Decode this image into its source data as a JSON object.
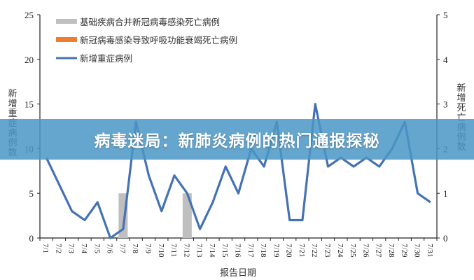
{
  "chart_data": {
    "type": "bar+line",
    "xlabel": "报告日期",
    "ylabel_left": "新增重症病例数",
    "ylabel_right": "新增死亡病例数",
    "ylim_left": [
      0,
      25
    ],
    "ylim_right": [
      0,
      5
    ],
    "yticks_left": [
      0,
      5,
      10,
      15,
      20,
      25
    ],
    "yticks_right": [
      0,
      1,
      2,
      3,
      4,
      5
    ],
    "legend_position": "top-left",
    "grid": false,
    "categories": [
      "7/1",
      "7/2",
      "7/3",
      "7/4",
      "7/5",
      "7/6",
      "7/7",
      "7/8",
      "7/9",
      "7/10",
      "7/11",
      "7/12",
      "7/13",
      "7/14",
      "7/15",
      "7/16",
      "7/17",
      "7/18",
      "7/19",
      "7/20",
      "7/21",
      "7/22",
      "7/23",
      "7/24",
      "7/25",
      "7/26",
      "7/27",
      "7/28",
      "7/29",
      "7/30",
      "7/31"
    ],
    "series": [
      {
        "name": "基础疾病合并新冠病毒感染死亡病例",
        "type": "bar",
        "axis": "right",
        "color": "#bfbfbf",
        "values": [
          0,
          0,
          0,
          0,
          0,
          0,
          1,
          0,
          0,
          0,
          0,
          1,
          0,
          0,
          0,
          0,
          0,
          0,
          0,
          0,
          0,
          0,
          0,
          0,
          0,
          0,
          0,
          0,
          0,
          0,
          0
        ]
      },
      {
        "name": "新冠病毒感染导致呼吸功能衰竭死亡病例",
        "type": "bar",
        "axis": "right",
        "color": "#ed7d31",
        "values": [
          0,
          0,
          0,
          0,
          0,
          0,
          0,
          0,
          0,
          0,
          0,
          0,
          0,
          0,
          0,
          0,
          0,
          0,
          0,
          0,
          0,
          0,
          0,
          0,
          0,
          0,
          0,
          0,
          0,
          0,
          0
        ]
      },
      {
        "name": "新增重症病例",
        "type": "line",
        "axis": "left",
        "color": "#4472b4",
        "values": [
          9,
          6,
          3,
          2,
          4,
          0,
          1,
          13,
          7,
          3,
          7,
          5,
          1,
          4,
          8,
          5,
          10,
          8,
          13,
          2,
          2,
          15,
          8,
          9,
          8,
          9,
          8,
          10,
          13,
          5,
          4
        ]
      }
    ]
  },
  "banner": {
    "title": "病毒迷局：新肺炎病例的热门通报探秘"
  }
}
